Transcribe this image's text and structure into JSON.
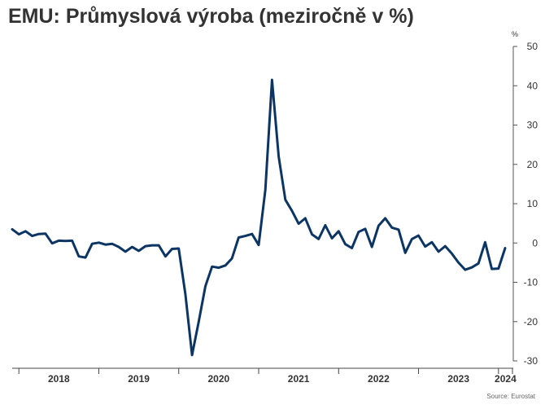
{
  "chart_data": {
    "type": "line",
    "title": "EMU: Průmyslová výroba (meziročně v %)",
    "ylabel": "%",
    "source": "Source: Eurostat",
    "ylim": [
      -30,
      50
    ],
    "yticks": [
      "-30",
      "-20",
      "-10",
      "0",
      "10",
      "20",
      "30",
      "40",
      "50"
    ],
    "years": [
      "2018",
      "2019",
      "2020",
      "2021",
      "2022",
      "2023",
      "2024"
    ],
    "x": [
      "2017-12",
      "2018-01",
      "2018-02",
      "2018-03",
      "2018-04",
      "2018-05",
      "2018-06",
      "2018-07",
      "2018-08",
      "2018-09",
      "2018-10",
      "2018-11",
      "2018-12",
      "2019-01",
      "2019-02",
      "2019-03",
      "2019-04",
      "2019-05",
      "2019-06",
      "2019-07",
      "2019-08",
      "2019-09",
      "2019-10",
      "2019-11",
      "2019-12",
      "2020-01",
      "2020-02",
      "2020-03",
      "2020-04",
      "2020-05",
      "2020-06",
      "2020-07",
      "2020-08",
      "2020-09",
      "2020-10",
      "2020-11",
      "2020-12",
      "2021-01",
      "2021-02",
      "2021-03",
      "2021-04",
      "2021-05",
      "2021-06",
      "2021-07",
      "2021-08",
      "2021-09",
      "2021-10",
      "2021-11",
      "2021-12",
      "2022-01",
      "2022-02",
      "2022-03",
      "2022-04",
      "2022-05",
      "2022-06",
      "2022-07",
      "2022-08",
      "2022-09",
      "2022-10",
      "2022-11",
      "2022-12",
      "2023-01",
      "2023-02",
      "2023-03",
      "2023-04",
      "2023-05",
      "2023-06",
      "2023-07",
      "2023-08",
      "2023-09",
      "2023-10",
      "2023-11",
      "2023-12",
      "2024-01",
      "2024-02"
    ],
    "series": [
      {
        "color": "#0d3563",
        "values": [
          3.5,
          2.2,
          3.0,
          1.8,
          2.3,
          2.4,
          -0.1,
          0.6,
          0.5,
          0.6,
          -3.4,
          -3.7,
          -0.2,
          0.1,
          -0.4,
          -0.2,
          -1.0,
          -2.2,
          -1.0,
          -2.0,
          -0.8,
          -0.6,
          -0.6,
          -3.4,
          -1.5,
          -1.4,
          -13.0,
          -28.5,
          -20.0,
          -11.0,
          -6.0,
          -6.3,
          -5.7,
          -3.9,
          1.4,
          1.8,
          2.3,
          -0.5,
          13.5,
          41.5,
          22.0,
          11.0,
          8.2,
          4.9,
          6.3,
          2.2,
          1.0,
          4.5,
          1.2,
          3.0,
          -0.3,
          -1.3,
          2.8,
          3.6,
          -1.0,
          4.4,
          6.3,
          3.9,
          3.4,
          -2.5,
          1.0,
          1.9,
          -0.9,
          0.2,
          -2.2,
          -0.8,
          -2.7,
          -5.0,
          -6.8,
          -6.2,
          -5.2,
          0.2,
          -6.6,
          -6.5,
          -1.3
        ]
      }
    ]
  }
}
